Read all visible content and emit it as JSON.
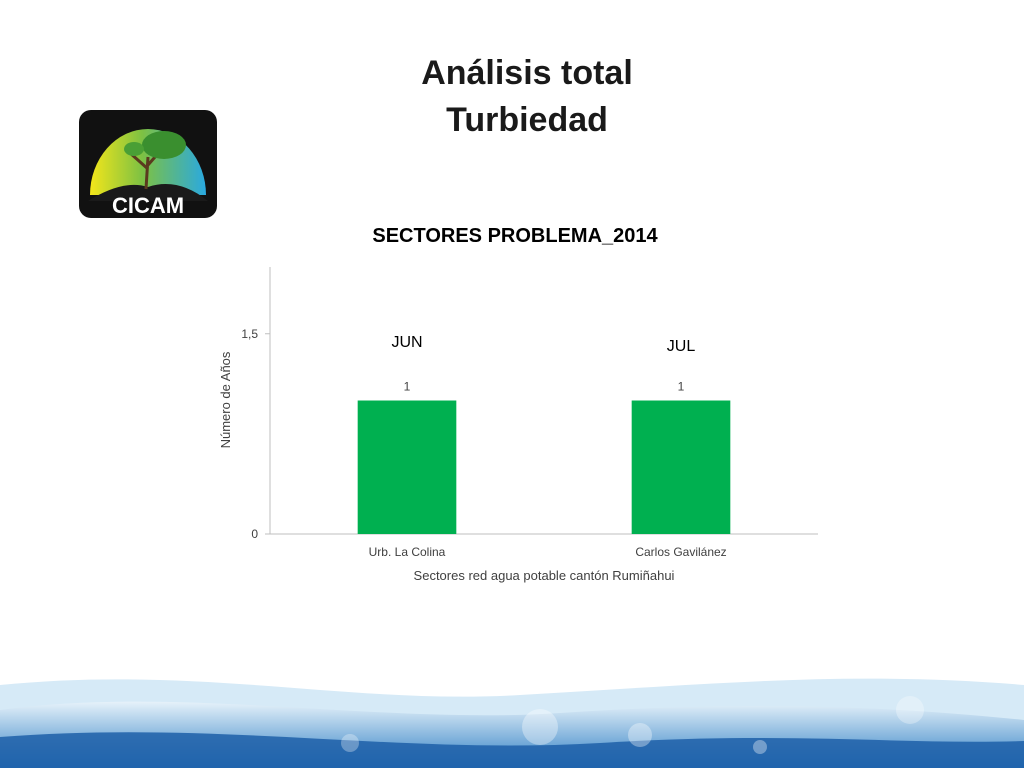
{
  "slide": {
    "title_line1": "Análisis total",
    "title_line2": "Turbiedad"
  },
  "logo": {
    "text": "CICAM"
  },
  "chart_data": {
    "type": "bar",
    "title": "SECTORES PROBLEMA_2014",
    "categories": [
      "Urb. La Colina",
      "Carlos Gavilánez"
    ],
    "values": [
      1,
      1
    ],
    "data_labels": [
      "1",
      "1"
    ],
    "month_annotations": [
      "JUN",
      "JUL"
    ],
    "xlabel": "Sectores red agua potable cantón Rumiñahui",
    "ylabel": "Número de Años",
    "yticks": [
      0,
      1.5
    ],
    "ytick_labels": [
      "0",
      "1,5"
    ],
    "ylim": [
      0,
      2
    ],
    "grid": false,
    "legend": "none",
    "bar_color": "#00b050"
  }
}
